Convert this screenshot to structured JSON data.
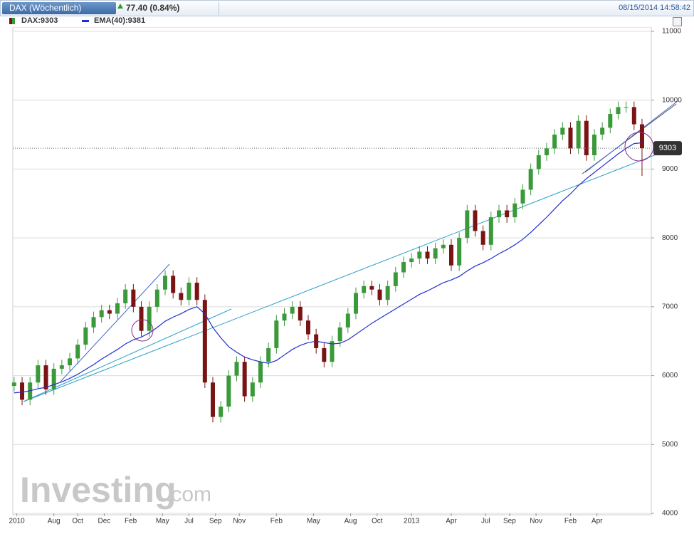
{
  "chart_data": {
    "type": "candlestick",
    "title": "DAX (Wöchentlich)",
    "change": "77.40 (0.84%)",
    "timestamp": "08/15/2014 14:58:42",
    "legend": [
      "DAX:9303",
      "EMA(40):9381"
    ],
    "watermark": [
      "Investing",
      ".com"
    ],
    "up_color": "#3a9a3a",
    "down_color": "#7a1414",
    "x": [
      0,
      3,
      6,
      9,
      12,
      15,
      18,
      21,
      24,
      27,
      30,
      33,
      36,
      39,
      42,
      45,
      48,
      51,
      54,
      57,
      60,
      63,
      66,
      69,
      72,
      75,
      78,
      81,
      84,
      87,
      90,
      93,
      96,
      99,
      102,
      105,
      108,
      111,
      114,
      117,
      120,
      123,
      126,
      129,
      132,
      135,
      138,
      141,
      144,
      147,
      150,
      153,
      156,
      159,
      162,
      165,
      168,
      171,
      174,
      177,
      180,
      183,
      186,
      189,
      192,
      195,
      198,
      201,
      204,
      207,
      210,
      213,
      216,
      219,
      222,
      225,
      228,
      231,
      234,
      237
    ],
    "open": [
      5850,
      5900,
      5650,
      5900,
      6150,
      5800,
      6100,
      6150,
      6250,
      6450,
      6700,
      6850,
      6950,
      6900,
      7050,
      7250,
      7000,
      6650,
      7000,
      7250,
      7450,
      7200,
      7100,
      7350,
      7100,
      5900,
      5400,
      5550,
      6000,
      6200,
      5700,
      5900,
      6200,
      6400,
      6800,
      6900,
      7000,
      6800,
      6600,
      6400,
      6200,
      6500,
      6700,
      6900,
      7200,
      7300,
      7250,
      7100,
      7300,
      7500,
      7650,
      7700,
      7800,
      7700,
      7850,
      7900,
      7600,
      8000,
      8400,
      8100,
      7900,
      8300,
      8400,
      8300,
      8500,
      8700,
      9000,
      9200,
      9300,
      9500,
      9600,
      9300,
      9700,
      9200,
      9500,
      9600,
      9800,
      9900,
      9900,
      9650
    ],
    "high": [
      5980,
      5980,
      5980,
      6230,
      6230,
      6180,
      6230,
      6330,
      6530,
      6780,
      6930,
      7030,
      7030,
      7130,
      7330,
      7330,
      7080,
      7080,
      7330,
      7530,
      7530,
      7280,
      7430,
      7430,
      7180,
      5980,
      5630,
      6080,
      6280,
      6280,
      5980,
      6280,
      6480,
      6880,
      6980,
      7080,
      7080,
      6880,
      6680,
      6480,
      6580,
      6780,
      6980,
      7280,
      7380,
      7380,
      7330,
      7380,
      7580,
      7730,
      7780,
      7880,
      7880,
      7930,
      7980,
      7980,
      8080,
      8480,
      8480,
      8180,
      8380,
      8480,
      8480,
      8580,
      8780,
      9080,
      9280,
      9380,
      9580,
      9680,
      9680,
      9780,
      9780,
      9580,
      9680,
      9880,
      9980,
      9980,
      9980,
      9730
    ],
    "low": [
      5770,
      5570,
      5570,
      5820,
      5720,
      5720,
      6020,
      6070,
      6170,
      6370,
      6620,
      6770,
      6820,
      6820,
      6970,
      6920,
      6570,
      6570,
      6920,
      7170,
      7120,
      7020,
      7020,
      7020,
      5820,
      5320,
      5320,
      5470,
      5920,
      5620,
      5620,
      5820,
      6120,
      6320,
      6720,
      6820,
      6720,
      6520,
      6320,
      6120,
      6120,
      6420,
      6620,
      6820,
      7120,
      7170,
      7020,
      7020,
      7220,
      7420,
      7570,
      7620,
      7620,
      7620,
      7770,
      7520,
      7520,
      7920,
      8020,
      7820,
      7820,
      8220,
      8220,
      8220,
      8420,
      8620,
      8920,
      9120,
      9220,
      9420,
      9220,
      9220,
      9120,
      9120,
      9420,
      9520,
      9720,
      9820,
      9570,
      8900
    ],
    "close": [
      5900,
      5650,
      5900,
      6150,
      5800,
      6100,
      6150,
      6250,
      6450,
      6700,
      6850,
      6950,
      6900,
      7050,
      7250,
      7000,
      6650,
      7000,
      7250,
      7450,
      7200,
      7100,
      7350,
      7100,
      5900,
      5400,
      5550,
      6000,
      6200,
      5700,
      5900,
      6200,
      6400,
      6800,
      6900,
      7000,
      6800,
      6600,
      6400,
      6200,
      6500,
      6700,
      6900,
      7200,
      7300,
      7250,
      7100,
      7300,
      7500,
      7650,
      7700,
      7800,
      7700,
      7850,
      7900,
      7600,
      8000,
      8400,
      8100,
      7900,
      8300,
      8400,
      8300,
      8500,
      8700,
      9000,
      9200,
      9300,
      9500,
      9600,
      9300,
      9700,
      9200,
      9500,
      9600,
      9800,
      9900,
      9900,
      9650,
      9303
    ],
    "ema": {
      "color": "#1f2fd0",
      "values": [
        5750,
        5760,
        5780,
        5810,
        5830,
        5870,
        5910,
        5960,
        6020,
        6090,
        6160,
        6240,
        6310,
        6380,
        6460,
        6520,
        6560,
        6620,
        6700,
        6790,
        6850,
        6900,
        6960,
        7000,
        6900,
        6700,
        6550,
        6420,
        6340,
        6270,
        6230,
        6200,
        6180,
        6220,
        6300,
        6380,
        6440,
        6480,
        6500,
        6480,
        6460,
        6470,
        6520,
        6600,
        6680,
        6760,
        6830,
        6900,
        6970,
        7040,
        7110,
        7180,
        7230,
        7290,
        7350,
        7390,
        7440,
        7520,
        7590,
        7640,
        7700,
        7770,
        7830,
        7900,
        7980,
        8080,
        8190,
        8300,
        8420,
        8540,
        8640,
        8760,
        8860,
        8950,
        9040,
        9130,
        9220,
        9300,
        9370,
        9381
      ]
    },
    "xlim": [
      -0.5,
      240.5
    ],
    "xticks": [
      {
        "value": 1,
        "label": "2010"
      },
      {
        "value": 15,
        "label": "Aug"
      },
      {
        "value": 24,
        "label": "Oct"
      },
      {
        "value": 34,
        "label": "Dec"
      },
      {
        "value": 44,
        "label": "Feb"
      },
      {
        "value": 56,
        "label": "May"
      },
      {
        "value": 66,
        "label": "Jul"
      },
      {
        "value": 76,
        "label": "Sep"
      },
      {
        "value": 85,
        "label": "Nov"
      },
      {
        "value": 99,
        "label": "Feb"
      },
      {
        "value": 113,
        "label": "May"
      },
      {
        "value": 127,
        "label": "Aug"
      },
      {
        "value": 137,
        "label": "Oct"
      },
      {
        "value": 150,
        "label": "2013"
      },
      {
        "value": 165,
        "label": "Apr"
      },
      {
        "value": 178,
        "label": "Jul"
      },
      {
        "value": 187,
        "label": "Sep"
      },
      {
        "value": 197,
        "label": "Nov"
      },
      {
        "value": 210,
        "label": "Feb"
      },
      {
        "value": 220,
        "label": "Apr"
      }
    ],
    "ylim": [
      4000,
      11000
    ],
    "yticks": [
      4000,
      5000,
      6000,
      7000,
      8000,
      9000,
      10000,
      11000
    ],
    "grid": true
  }
}
